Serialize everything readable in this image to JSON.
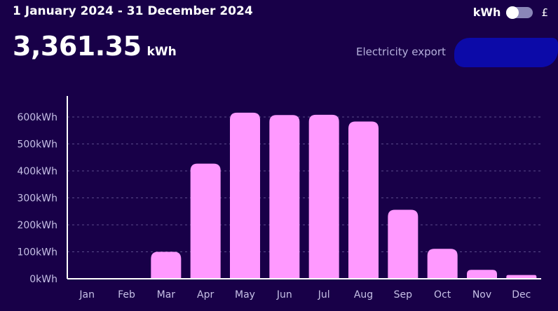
{
  "header": {
    "date_range": "1 January 2024 - 31 December 2024",
    "toggle": {
      "left_label": "kWh",
      "right_label": "£",
      "selected": "kWh"
    }
  },
  "summary": {
    "total_value": "3,361.35",
    "total_unit": "kWh",
    "meter_label": "Electricity export"
  },
  "colors": {
    "background": "#180048",
    "bar": "#ff99ff",
    "gridline": "#5a4a8a",
    "axis": "#ffffff",
    "redaction": "#0c0aa8"
  },
  "chart_data": {
    "type": "bar",
    "categories": [
      "Jan",
      "Feb",
      "Mar",
      "Apr",
      "May",
      "Jun",
      "Jul",
      "Aug",
      "Sep",
      "Oct",
      "Nov",
      "Dec"
    ],
    "values": [
      0,
      0,
      100,
      427,
      616,
      607,
      608,
      583,
      256,
      111,
      33,
      14
    ],
    "y_ticks": [
      "0kWh",
      "100kWh",
      "200kWh",
      "300kWh",
      "400kWh",
      "500kWh",
      "600kWh"
    ],
    "ylim": [
      0,
      600
    ],
    "title": "",
    "xlabel": "",
    "ylabel": "",
    "grid": true,
    "legend": "none"
  }
}
